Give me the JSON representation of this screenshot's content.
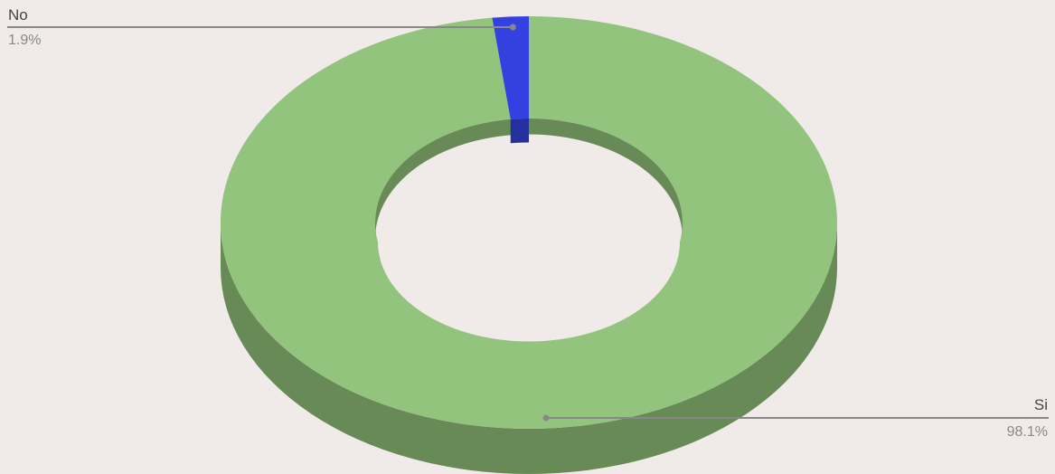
{
  "chart_data": {
    "type": "pie",
    "style": "3d-donut",
    "series": [
      {
        "name": "Si",
        "value": 98.1,
        "label": "98.1%",
        "color": "#93c47d",
        "side_color": "#678a57"
      },
      {
        "name": "No",
        "value": 1.9,
        "label": "1.9%",
        "color": "#3341e0",
        "side_color": "#24309c"
      }
    ],
    "legend": "none"
  }
}
